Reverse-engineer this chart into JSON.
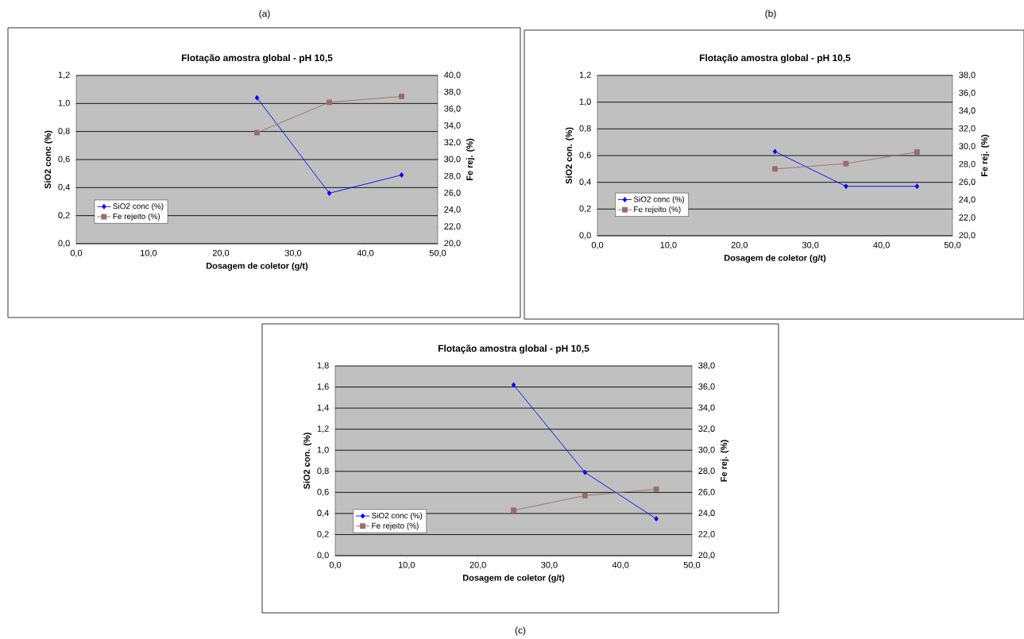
{
  "chart_data": [
    {
      "type": "line",
      "title": "Flotação amostra global - pH 10,5",
      "xlabel": "Dosagem de coletor (g/t)",
      "ylabel": "SiO2 conc (%)",
      "y2label": "Fe rej. (%)",
      "annotations": [
        "(a)"
      ],
      "x": [
        25,
        35,
        45
      ],
      "series": [
        {
          "name": "SiO2 conc (%)",
          "color": "#0000ff",
          "marker": "diamond",
          "values": [
            1.04,
            0.36,
            0.49
          ]
        },
        {
          "name": "Fe rejeito (%)",
          "color": "#9c6b6b",
          "marker": "square",
          "axis": "y2",
          "values": [
            33.2,
            36.8,
            37.5
          ]
        }
      ],
      "xlim": [
        0,
        50
      ],
      "xticks": [
        {
          "value": 0,
          "label": "0,0"
        },
        {
          "value": 10,
          "label": "10,0"
        },
        {
          "value": 20,
          "label": "20,0"
        },
        {
          "value": 30,
          "label": "30,0"
        },
        {
          "value": 40,
          "label": "40,0"
        },
        {
          "value": 50,
          "label": "50,0"
        }
      ],
      "ylim": [
        0,
        1.2
      ],
      "yticks": [
        {
          "value": 0,
          "label": "0,0"
        },
        {
          "value": 0.2,
          "label": "0,2"
        },
        {
          "value": 0.4,
          "label": "0,4"
        },
        {
          "value": 0.6,
          "label": "0,6"
        },
        {
          "value": 0.8,
          "label": "0,8"
        },
        {
          "value": 1.0,
          "label": "1,0"
        },
        {
          "value": 1.2,
          "label": "1,2"
        }
      ],
      "y2lim": [
        20,
        40
      ],
      "y2ticks": [
        {
          "value": 20,
          "label": "20,0"
        },
        {
          "value": 22,
          "label": "22,0"
        },
        {
          "value": 24,
          "label": "24,0"
        },
        {
          "value": 26,
          "label": "26,0"
        },
        {
          "value": 28,
          "label": "28,0"
        },
        {
          "value": 30,
          "label": "30,0"
        },
        {
          "value": 32,
          "label": "32,0"
        },
        {
          "value": 34,
          "label": "34,0"
        },
        {
          "value": 36,
          "label": "36,0"
        },
        {
          "value": 38,
          "label": "38,0"
        },
        {
          "value": 40,
          "label": "40,0"
        }
      ],
      "grid": "y",
      "legend": "bottom left",
      "line_style": "solid"
    },
    {
      "type": "line",
      "title": "Flotação amostra global - pH 10,5",
      "xlabel": "Dosagem de coletor (g/t)",
      "ylabel": "SiO2 con. (%)",
      "y2label": "Fe rej. (%)",
      "annotations": [
        "(b)"
      ],
      "x": [
        25,
        35,
        45
      ],
      "series": [
        {
          "name": "SiO2 conc (%)",
          "color": "#0000ff",
          "marker": "diamond",
          "values": [
            0.63,
            0.37,
            0.37
          ]
        },
        {
          "name": "Fe rejeito (%)",
          "color": "#9c6b6b",
          "marker": "square",
          "axis": "y2",
          "values": [
            27.5,
            28.1,
            29.4
          ]
        }
      ],
      "xlim": [
        0,
        50
      ],
      "xticks": [
        {
          "value": 0,
          "label": "0,0"
        },
        {
          "value": 10,
          "label": "10,0"
        },
        {
          "value": 20,
          "label": "20,0"
        },
        {
          "value": 30,
          "label": "30,0"
        },
        {
          "value": 40,
          "label": "40,0"
        },
        {
          "value": 50,
          "label": "50,0"
        }
      ],
      "ylim": [
        0,
        1.2
      ],
      "yticks": [
        {
          "value": 0,
          "label": "0,0"
        },
        {
          "value": 0.2,
          "label": "0,2"
        },
        {
          "value": 0.4,
          "label": "0,4"
        },
        {
          "value": 0.6,
          "label": "0,6"
        },
        {
          "value": 0.8,
          "label": "0,8"
        },
        {
          "value": 1.0,
          "label": "1,0"
        },
        {
          "value": 1.2,
          "label": "1,2"
        }
      ],
      "y2lim": [
        20,
        38
      ],
      "y2ticks": [
        {
          "value": 20,
          "label": "20,0"
        },
        {
          "value": 22,
          "label": "22,0"
        },
        {
          "value": 24,
          "label": "24,0"
        },
        {
          "value": 26,
          "label": "26,0"
        },
        {
          "value": 28,
          "label": "28,0"
        },
        {
          "value": 30,
          "label": "30,0"
        },
        {
          "value": 32,
          "label": "32,0"
        },
        {
          "value": 34,
          "label": "34,0"
        },
        {
          "value": 36,
          "label": "36,0"
        },
        {
          "value": 38,
          "label": "38,0"
        }
      ],
      "grid": "y",
      "legend": "bottom left",
      "line_style": "solid"
    },
    {
      "type": "line",
      "title": "Flotação amostra global - pH 10,5",
      "xlabel": "Dosagem de coletor (g/t)",
      "ylabel": "SiO2 con. (%)",
      "y2label": "Fe rej. (%)",
      "annotations": [
        "(c)"
      ],
      "x": [
        25,
        35,
        45
      ],
      "series": [
        {
          "name": "SiO2 conc (%)",
          "color": "#0000ff",
          "marker": "diamond",
          "values": [
            1.62,
            0.79,
            0.35
          ]
        },
        {
          "name": "Fe rejeito (%)",
          "color": "#9c6b6b",
          "marker": "square",
          "axis": "y2",
          "values": [
            24.3,
            25.7,
            26.3
          ]
        }
      ],
      "xlim": [
        0,
        50
      ],
      "xticks": [
        {
          "value": 0,
          "label": "0,0"
        },
        {
          "value": 10,
          "label": "10,0"
        },
        {
          "value": 20,
          "label": "20,0"
        },
        {
          "value": 30,
          "label": "30,0"
        },
        {
          "value": 40,
          "label": "40,0"
        },
        {
          "value": 50,
          "label": "50,0"
        }
      ],
      "ylim": [
        0,
        1.8
      ],
      "yticks": [
        {
          "value": 0,
          "label": "0,0"
        },
        {
          "value": 0.2,
          "label": "0,2"
        },
        {
          "value": 0.4,
          "label": "0,4"
        },
        {
          "value": 0.6,
          "label": "0,6"
        },
        {
          "value": 0.8,
          "label": "0,8"
        },
        {
          "value": 1.0,
          "label": "1,0"
        },
        {
          "value": 1.2,
          "label": "1,2"
        },
        {
          "value": 1.4,
          "label": "1,4"
        },
        {
          "value": 1.6,
          "label": "1,6"
        },
        {
          "value": 1.8,
          "label": "1,8"
        }
      ],
      "y2lim": [
        20,
        38
      ],
      "y2ticks": [
        {
          "value": 20,
          "label": "20,0"
        },
        {
          "value": 22,
          "label": "22,0"
        },
        {
          "value": 24,
          "label": "24,0"
        },
        {
          "value": 26,
          "label": "26,0"
        },
        {
          "value": 28,
          "label": "28,0"
        },
        {
          "value": 30,
          "label": "30,0"
        },
        {
          "value": 32,
          "label": "32,0"
        },
        {
          "value": 34,
          "label": "34,0"
        },
        {
          "value": 36,
          "label": "36,0"
        },
        {
          "value": 38,
          "label": "38,0"
        }
      ],
      "grid": "y",
      "legend": "bottom left",
      "line_style": "solid"
    }
  ]
}
